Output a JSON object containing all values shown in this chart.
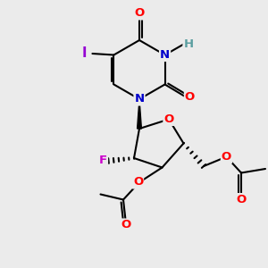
{
  "bg_color": "#ebebeb",
  "bond_color": "#000000",
  "bond_width": 1.5,
  "atom_colors": {
    "O": "#ff0000",
    "N": "#0000cc",
    "H": "#5a9ea0",
    "I": "#9400d3",
    "F": "#cc00cc"
  },
  "font_size": 8.5,
  "fig_width": 3.0,
  "fig_height": 3.0,
  "dpi": 100
}
